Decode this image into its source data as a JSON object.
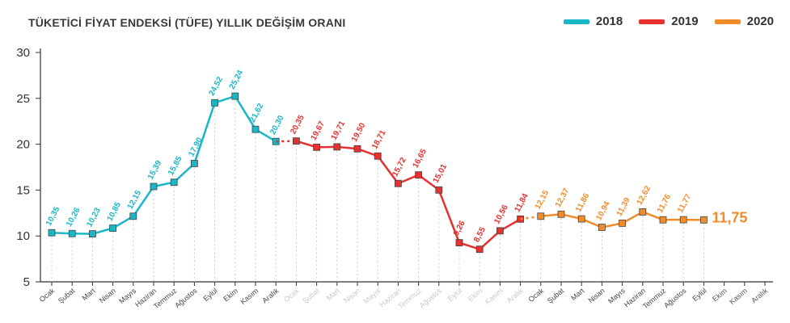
{
  "chart_data": {
    "type": "line",
    "title": "TÜKETİCİ FİYAT ENDEKSİ (TÜFE) YILLIK DEĞİŞİM ORANI",
    "ylim": [
      5,
      30
    ],
    "yticks": [
      5,
      10,
      15,
      20,
      25,
      30
    ],
    "grid": false,
    "legend_position": "top-right",
    "months": [
      "Ocak",
      "Şubat",
      "Mart",
      "Nisan",
      "Mayıs",
      "Haziran",
      "Temmuz",
      "Ağustos",
      "Eylül",
      "Ekim",
      "Kasım",
      "Aralık"
    ],
    "highlight": {
      "series": 2,
      "index": 8,
      "label": "11,75"
    },
    "series": [
      {
        "name": "2018",
        "color": "#19b6c7",
        "values": [
          10.35,
          10.26,
          10.23,
          10.85,
          12.15,
          15.39,
          15.85,
          17.9,
          24.52,
          25.24,
          21.62,
          20.3
        ],
        "labels": [
          "10,35",
          "10,26",
          "10,23",
          "10,85",
          "12,15",
          "15,39",
          "15,85",
          "17,90",
          "24,52",
          "25,24",
          "21,62",
          "20,30"
        ]
      },
      {
        "name": "2019",
        "color": "#e8302f",
        "values": [
          20.35,
          19.67,
          19.71,
          19.5,
          18.71,
          15.72,
          16.65,
          15.01,
          9.26,
          8.55,
          10.56,
          11.84
        ],
        "labels": [
          "20,35",
          "19,67",
          "19,71",
          "19,50",
          "18,71",
          "15,72",
          "16,65",
          "15,01",
          "9,26",
          "8,55",
          "10,56",
          "11,84"
        ]
      },
      {
        "name": "2020",
        "color": "#f28c28",
        "values": [
          12.15,
          12.37,
          11.86,
          10.94,
          11.39,
          12.62,
          11.76,
          11.77,
          11.75
        ],
        "labels": [
          "12,15",
          "12,37",
          "11,86",
          "10,94",
          "11,39",
          "12,62",
          "11,76",
          "11,77",
          "11,75"
        ]
      }
    ]
  }
}
